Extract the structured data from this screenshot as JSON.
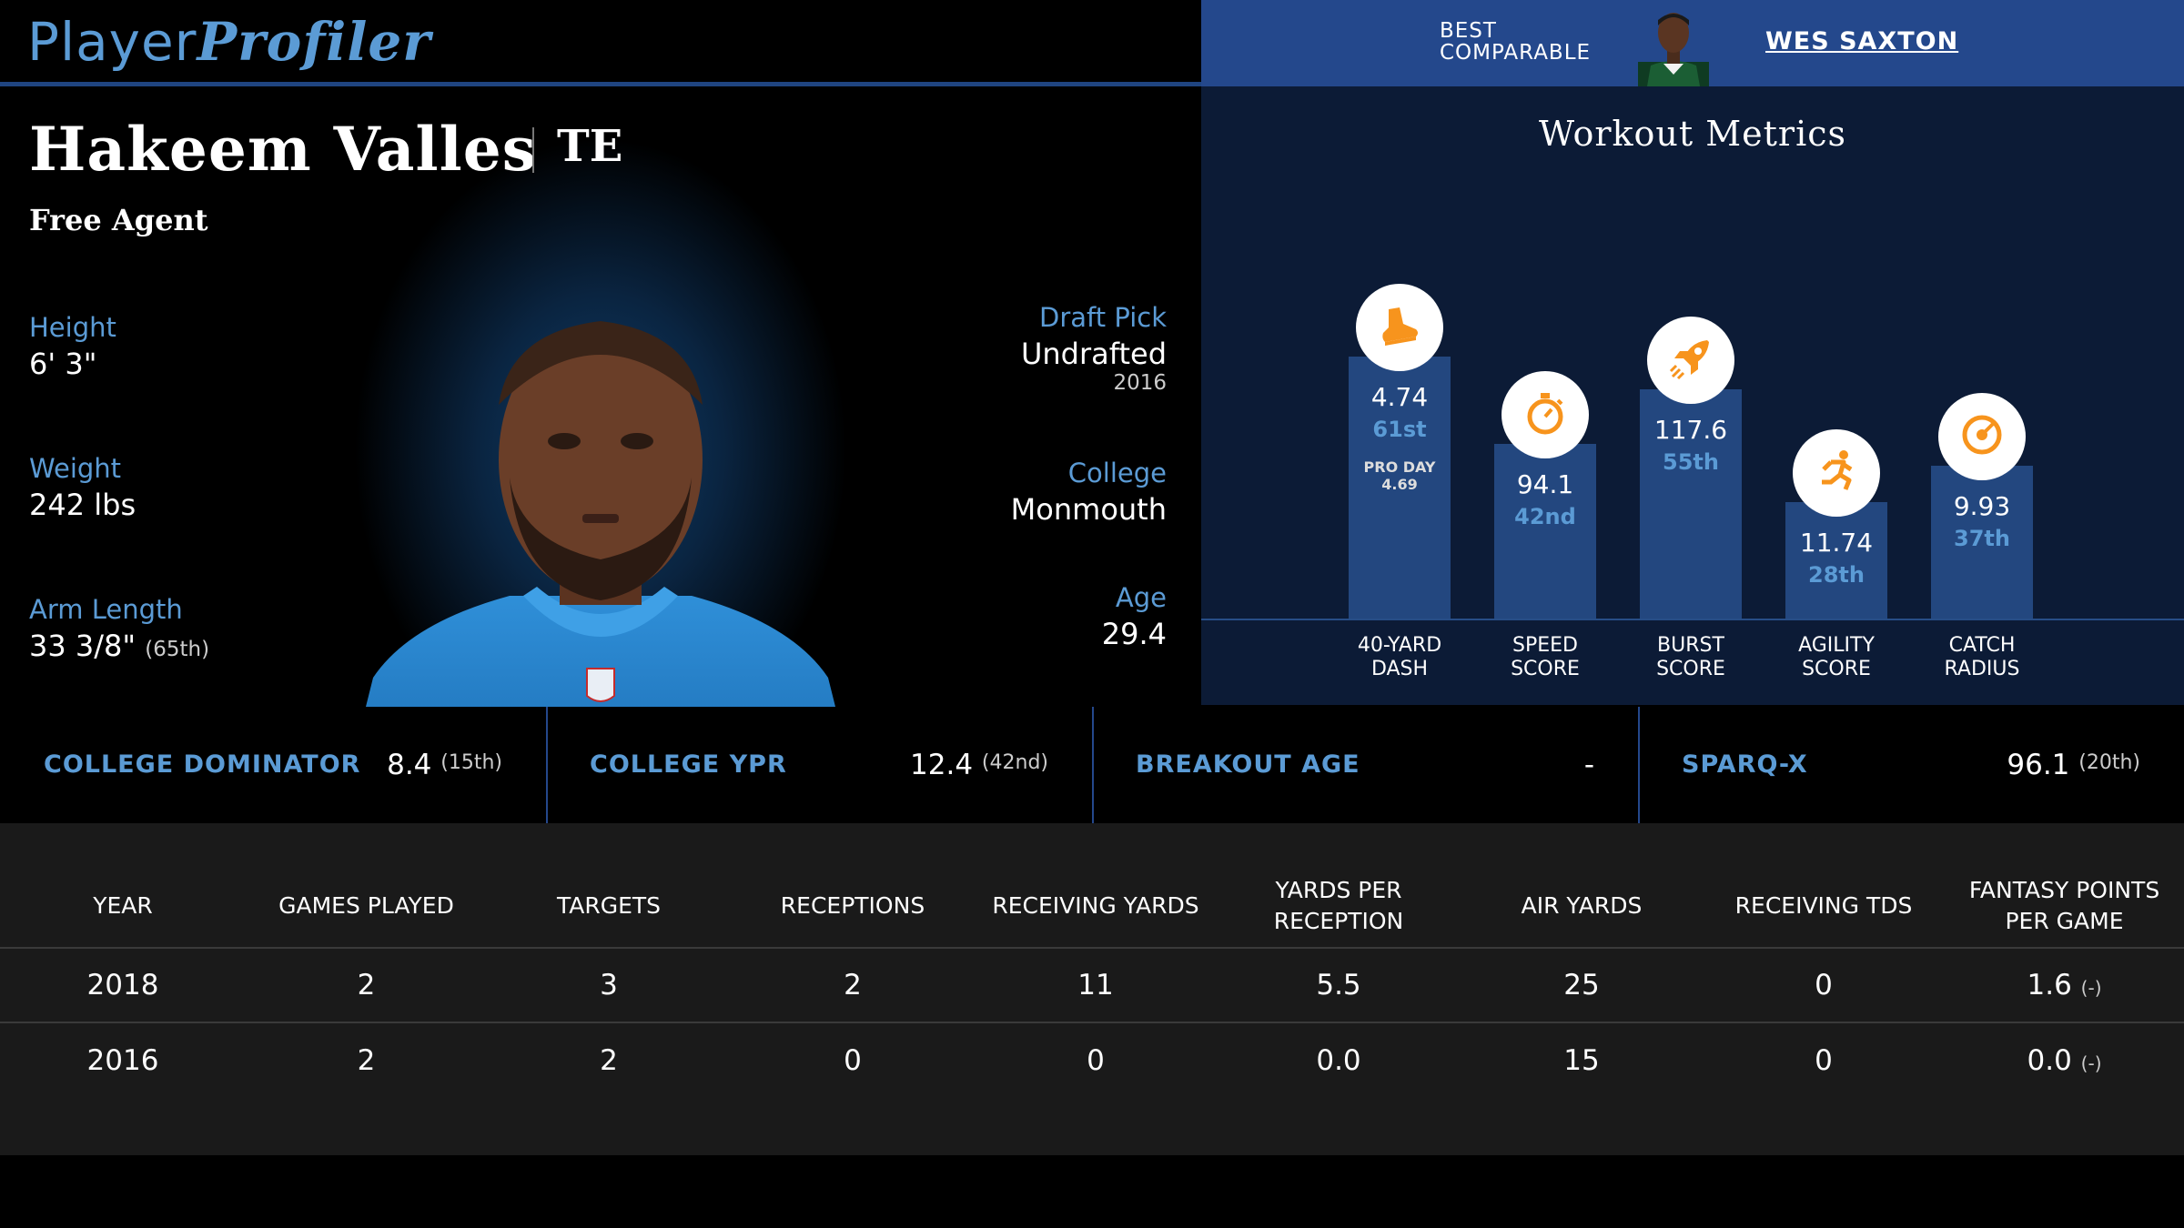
{
  "header": {
    "logo_part1": "Player",
    "logo_part2": "Profiler",
    "best_comparable_line1": "BEST",
    "best_comparable_line2": "COMPARABLE",
    "best_comparable_name": "WES SAXTON"
  },
  "player": {
    "name": "Hakeem Valles",
    "position": "TE",
    "team": "Free Agent",
    "height_label": "Height",
    "height_value": "6' 3\"",
    "weight_label": "Weight",
    "weight_value": "242 lbs",
    "arm_label": "Arm Length",
    "arm_value": "33 3/8\"",
    "arm_pct": "(65th)",
    "draft_label": "Draft Pick",
    "draft_value": "Undrafted",
    "draft_year": "2016",
    "college_label": "College",
    "college_value": "Monmouth",
    "age_label": "Age",
    "age_value": "29.4"
  },
  "workout": {
    "title": "Workout Metrics",
    "metrics": [
      {
        "icon": "shoe-icon",
        "value": "4.74",
        "percentile": "61st",
        "pro_day_label": "PRO DAY",
        "pro_day_value": "4.69",
        "label_line1": "40-YARD",
        "label_line2": "DASH",
        "level": 0.72
      },
      {
        "icon": "stopwatch-icon",
        "value": "94.1",
        "percentile": "42nd",
        "label_line1": "SPEED",
        "label_line2": "SCORE",
        "level": 0.48
      },
      {
        "icon": "rocket-icon",
        "value": "117.6",
        "percentile": "55th",
        "label_line1": "BURST",
        "label_line2": "SCORE",
        "level": 0.63
      },
      {
        "icon": "runner-icon",
        "value": "11.74",
        "percentile": "28th",
        "label_line1": "AGILITY",
        "label_line2": "SCORE",
        "level": 0.32
      },
      {
        "icon": "target-icon",
        "value": "9.93",
        "percentile": "37th",
        "label_line1": "CATCH",
        "label_line2": "RADIUS",
        "level": 0.42
      }
    ]
  },
  "metrics_strip": [
    {
      "label": "COLLEGE DOMINATOR",
      "value": "8.4",
      "sub": "(15th)"
    },
    {
      "label": "COLLEGE YPR",
      "value": "12.4",
      "sub": "(42nd)"
    },
    {
      "label": "BREAKOUT AGE",
      "value": "-",
      "sub": ""
    },
    {
      "label": "SPARQ-X",
      "value": "96.1",
      "sub": "(20th)"
    }
  ],
  "stats_table": {
    "headers": [
      "YEAR",
      "GAMES PLAYED",
      "TARGETS",
      "RECEPTIONS",
      "RECEIVING YARDS",
      "YARDS PER RECEPTION",
      "AIR YARDS",
      "RECEIVING TDS",
      "FANTASY POINTS PER GAME"
    ],
    "rows": [
      {
        "cells": [
          "2018",
          "2",
          "3",
          "2",
          "11",
          "5.5",
          "25",
          "0",
          "1.6"
        ],
        "fp_sub": "(-)"
      },
      {
        "cells": [
          "2016",
          "2",
          "2",
          "0",
          "0",
          "0.0",
          "15",
          "0",
          "0.0"
        ],
        "fp_sub": "(-)"
      }
    ]
  }
}
